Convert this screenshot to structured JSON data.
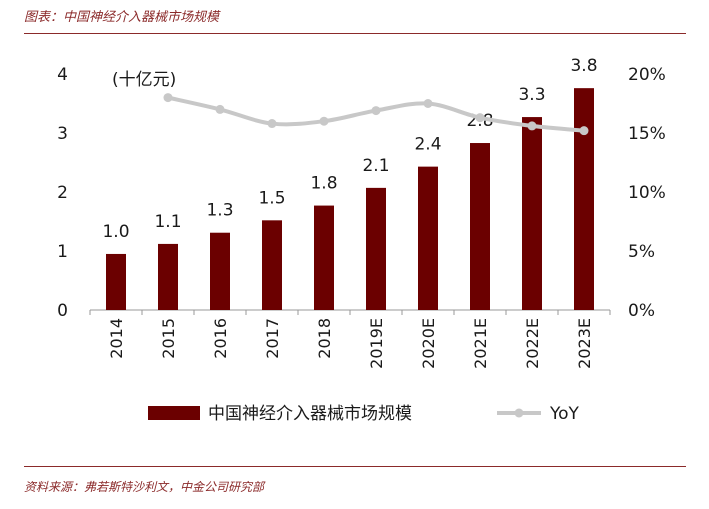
{
  "figure_title": "图表：中国神经介入器械市场规模",
  "source_note": "资料来源：弗若斯特沙利文，中金公司研究部",
  "colors": {
    "bar": "#6b0000",
    "line": "#c8c8c8",
    "accent": "#8b2a2a",
    "axis": "#999999"
  },
  "chart_data": {
    "type": "bar",
    "title": "中国神经介入器械市场规模",
    "unit_label": "(十亿元)",
    "categories": [
      "2014",
      "2015",
      "2016",
      "2017",
      "2018",
      "2019E",
      "2020E",
      "2021E",
      "2022E",
      "2023E"
    ],
    "series": [
      {
        "name": "中国神经介入器械市场规模",
        "type": "bar",
        "axis": "left",
        "values": [
          0.95,
          1.12,
          1.31,
          1.52,
          1.77,
          2.07,
          2.43,
          2.83,
          3.27,
          3.76
        ]
      },
      {
        "name": "YoY",
        "type": "line",
        "axis": "right",
        "unit": "percent",
        "values": [
          null,
          18.0,
          17.0,
          15.8,
          16.0,
          16.9,
          17.5,
          16.3,
          15.6,
          15.2
        ]
      }
    ],
    "data_labels": [
      "1.0",
      "1.1",
      "1.3",
      "1.5",
      "1.8",
      "2.1",
      "2.4",
      "2.8",
      "3.3",
      "3.8"
    ],
    "y_left": {
      "range": [
        0,
        4
      ],
      "ticks": [
        "0",
        "1",
        "2",
        "3",
        "4"
      ]
    },
    "y_right": {
      "range": [
        0,
        20
      ],
      "ticks": [
        "0%",
        "5%",
        "10%",
        "15%",
        "20%"
      ]
    },
    "legend": {
      "position": "bottom",
      "entries": [
        "中国神经介入器械市场规模",
        "YoY"
      ]
    },
    "grid": false
  }
}
